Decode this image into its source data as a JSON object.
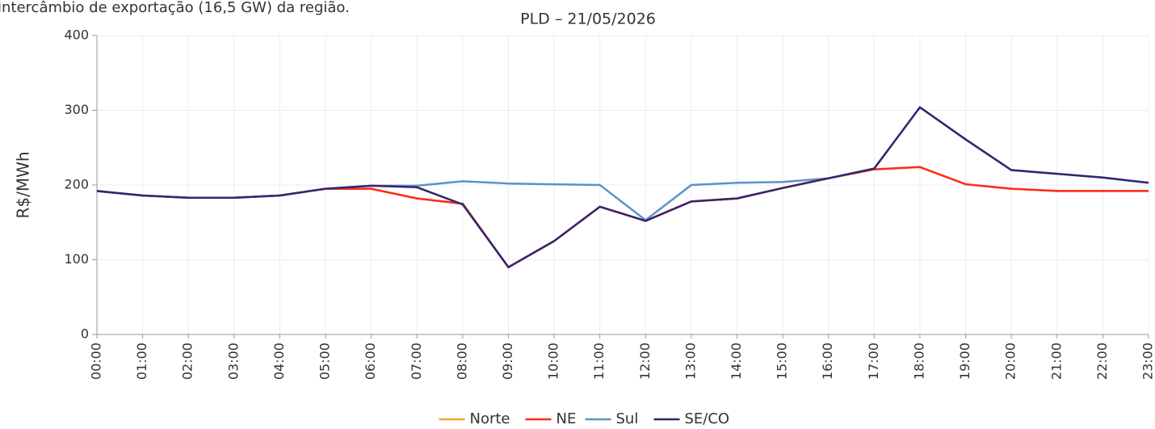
{
  "header_text": "intercâmbio de exportação (16,5 GW) da região.",
  "chart_data": {
    "type": "line",
    "title": "PLD – 21/05/2026",
    "y_label": "R$/MWh",
    "categories": [
      "00:00",
      "01:00",
      "02:00",
      "03:00",
      "04:00",
      "05:00",
      "06:00",
      "07:00",
      "08:00",
      "09:00",
      "10:00",
      "11:00",
      "12:00",
      "13:00",
      "14:00",
      "15:00",
      "16:00",
      "17:00",
      "18:00",
      "19:00",
      "20:00",
      "21:00",
      "22:00",
      "23:00"
    ],
    "series": [
      {
        "name": "Norte",
        "color": "#f0a830",
        "values": [
          192,
          186,
          183,
          183,
          186,
          195,
          195,
          182,
          175,
          90,
          125,
          171,
          152,
          178,
          182,
          196,
          209,
          221,
          224,
          201,
          195,
          192,
          192,
          192
        ]
      },
      {
        "name": "NE",
        "color": "#ff2a1a",
        "values": [
          192,
          186,
          183,
          183,
          186,
          195,
          195,
          182,
          175,
          90,
          125,
          171,
          152,
          178,
          182,
          196,
          209,
          221,
          224,
          201,
          195,
          192,
          192,
          192
        ]
      },
      {
        "name": "Sul",
        "color": "#5b93c7",
        "values": [
          192,
          186,
          183,
          183,
          186,
          195,
          199,
          199,
          205,
          202,
          201,
          200,
          153,
          200,
          203,
          204,
          209,
          222,
          304,
          261,
          220,
          215,
          210,
          203
        ]
      },
      {
        "name": "SE/CO",
        "color": "#35256e",
        "values": [
          192,
          186,
          183,
          183,
          186,
          195,
          199,
          197,
          174,
          90,
          125,
          171,
          152,
          178,
          182,
          196,
          209,
          222,
          304,
          261,
          220,
          215,
          210,
          203
        ]
      }
    ],
    "ylim": [
      0,
      400
    ],
    "yticks": [
      0,
      100,
      200,
      300,
      400
    ],
    "grid": true,
    "legend": "bottom"
  }
}
